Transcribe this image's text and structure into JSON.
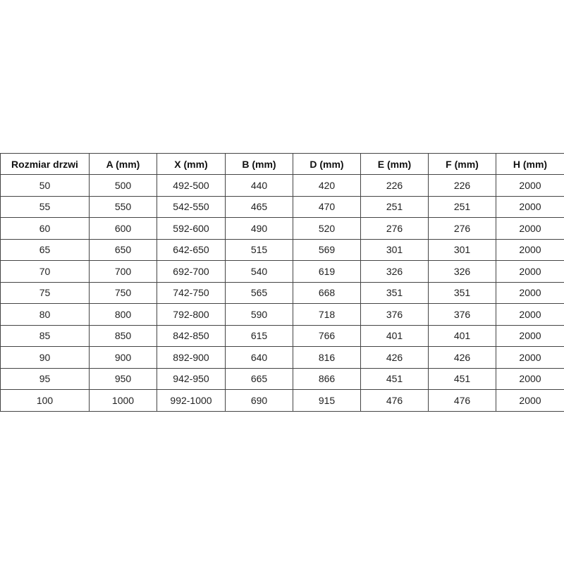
{
  "table": {
    "headers": [
      "Rozmiar drzwi",
      "A (mm)",
      "X (mm)",
      "B (mm)",
      "D (mm)",
      "E (mm)",
      "F (mm)",
      "H (mm)"
    ],
    "rows": [
      [
        "50",
        "500",
        "492-500",
        "440",
        "420",
        "226",
        "226",
        "2000"
      ],
      [
        "55",
        "550",
        "542-550",
        "465",
        "470",
        "251",
        "251",
        "2000"
      ],
      [
        "60",
        "600",
        "592-600",
        "490",
        "520",
        "276",
        "276",
        "2000"
      ],
      [
        "65",
        "650",
        "642-650",
        "515",
        "569",
        "301",
        "301",
        "2000"
      ],
      [
        "70",
        "700",
        "692-700",
        "540",
        "619",
        "326",
        "326",
        "2000"
      ],
      [
        "75",
        "750",
        "742-750",
        "565",
        "668",
        "351",
        "351",
        "2000"
      ],
      [
        "80",
        "800",
        "792-800",
        "590",
        "718",
        "376",
        "376",
        "2000"
      ],
      [
        "85",
        "850",
        "842-850",
        "615",
        "766",
        "401",
        "401",
        "2000"
      ],
      [
        "90",
        "900",
        "892-900",
        "640",
        "816",
        "426",
        "426",
        "2000"
      ],
      [
        "95",
        "950",
        "942-950",
        "665",
        "866",
        "451",
        "451",
        "2000"
      ],
      [
        "100",
        "1000",
        "992-1000",
        "690",
        "915",
        "476",
        "476",
        "2000"
      ]
    ]
  }
}
